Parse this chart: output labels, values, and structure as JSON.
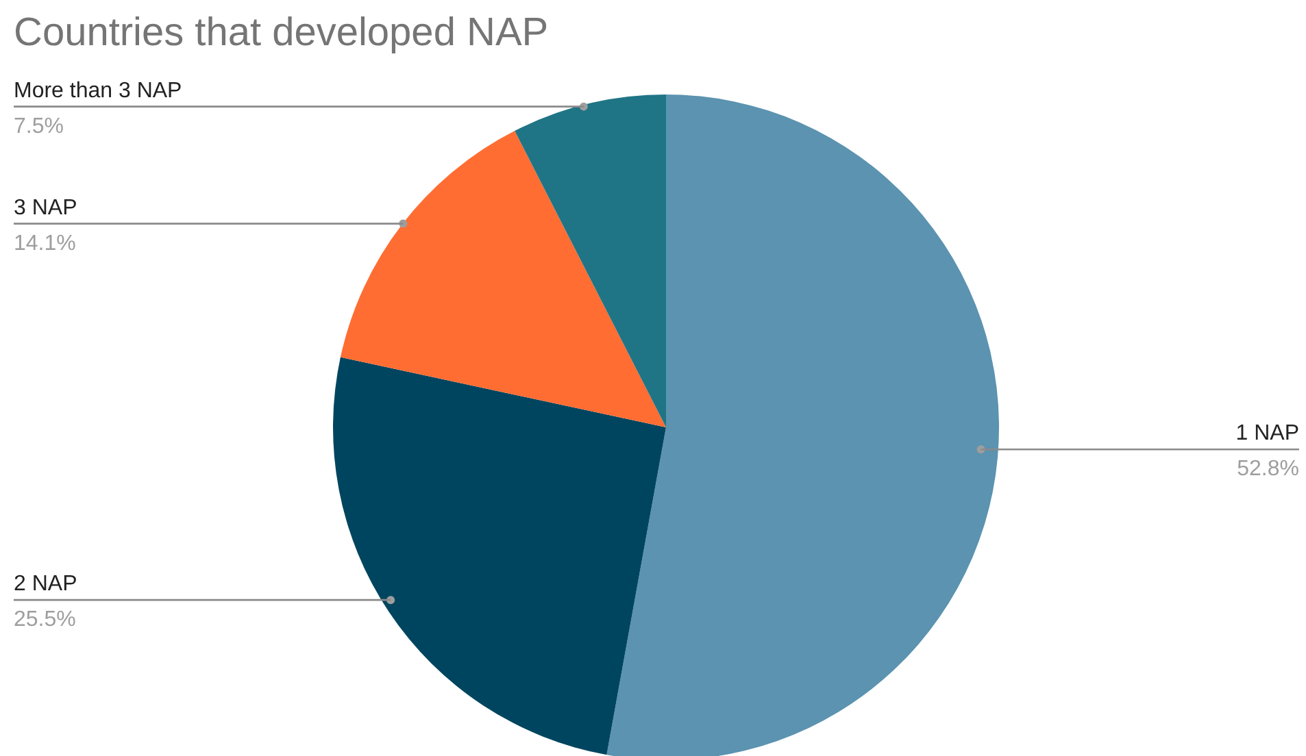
{
  "chart_data": {
    "type": "pie",
    "title": "Countries that developed NAP",
    "categories": [
      "1 NAP",
      "2 NAP",
      "3 NAP",
      "More than 3 NAP"
    ],
    "values": [
      52.8,
      25.5,
      14.1,
      7.5
    ],
    "colors": [
      "#5b93b0",
      "#00455f",
      "#ff6d33",
      "#1f7585"
    ],
    "value_labels": [
      "52.8%",
      "25.5%",
      "14.1%",
      "7.5%"
    ]
  }
}
